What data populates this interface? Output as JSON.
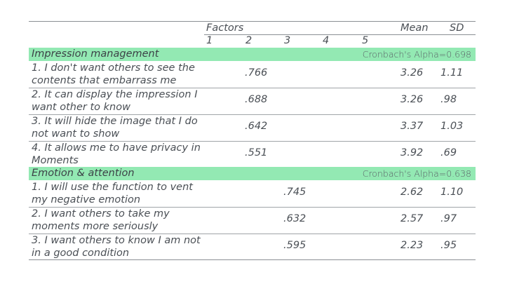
{
  "header": {
    "factors": "Factors",
    "factor_numbers": [
      "1",
      "2",
      "3",
      "4",
      "5"
    ],
    "mean": "Mean",
    "sd": "SD"
  },
  "sections": [
    {
      "title": "Impression management",
      "alpha": "Cronbach's Alpha=0.698",
      "rows": [
        {
          "item": "1. I don't want others to see the contents that embarrass me",
          "loading": ".766",
          "mean": "3.26",
          "sd": "1.11"
        },
        {
          "item": "2. It can display the impression I want other to know",
          "loading": ".688",
          "mean": "3.26",
          "sd": ".98"
        },
        {
          "item": "3. It will hide the image that I do not want to show",
          "loading": ".642",
          "mean": "3.37",
          "sd": "1.03"
        },
        {
          "item": "4. It allows me to have privacy in Moments",
          "loading": ".551",
          "mean": "3.92",
          "sd": ".69"
        }
      ]
    },
    {
      "title": "Emotion & attention",
      "alpha": "Cronbach's Alpha=0.638",
      "rows": [
        {
          "item": "1. I will use the function to vent my negative emotion",
          "loading": ".745",
          "mean": "2.62",
          "sd": "1.10"
        },
        {
          "item": "2. I want others to take my moments more seriously",
          "loading": ".632",
          "mean": "2.57",
          "sd": ".97"
        },
        {
          "item": "3. I want others to know I am not in a good condition",
          "loading": ".595",
          "mean": "2.23",
          "sd": ".95"
        }
      ]
    }
  ]
}
